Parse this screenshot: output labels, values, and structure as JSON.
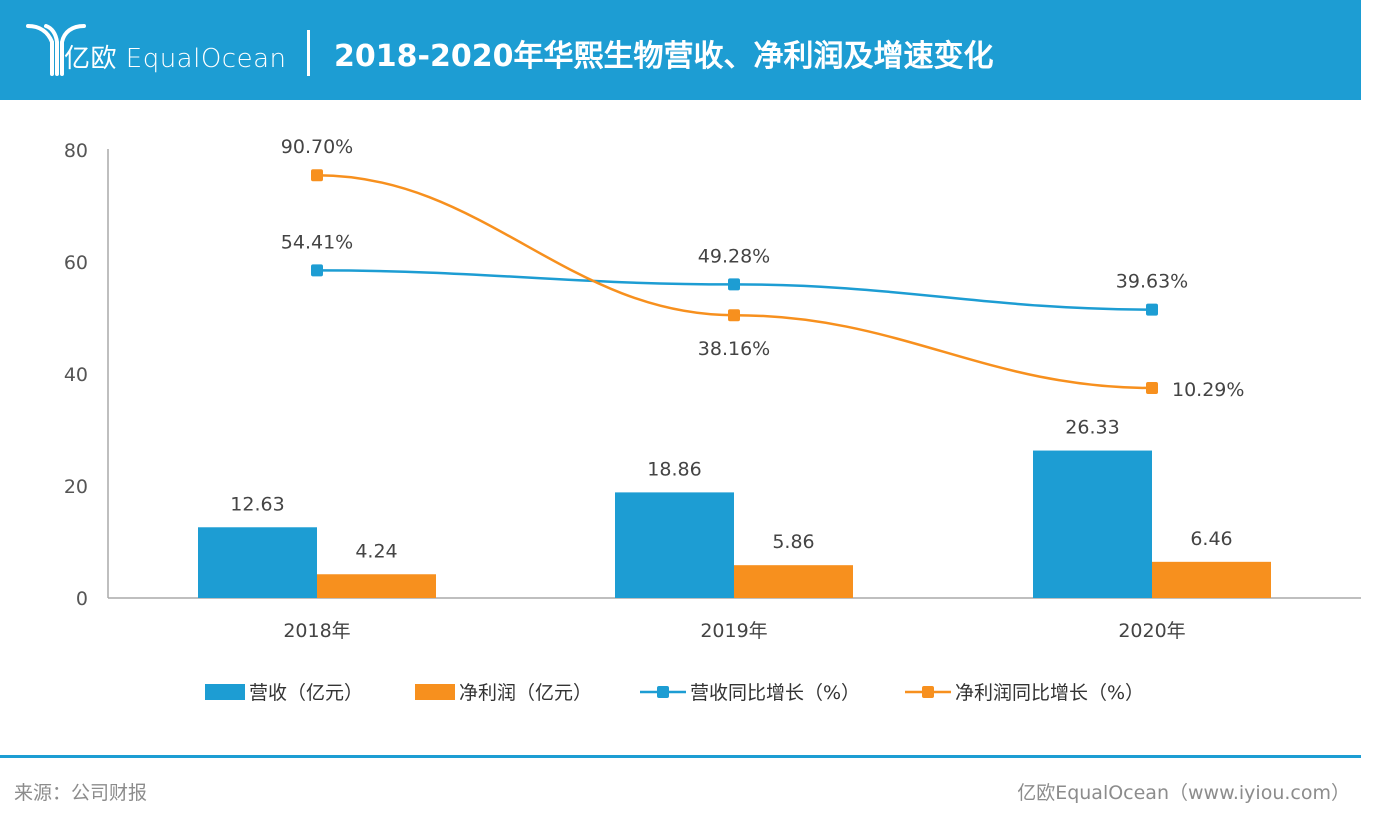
{
  "header": {
    "brand": "亿欧 EqualOcean",
    "title": "2018-2020年华熙生物营收、净利润及增速变化",
    "bg_color": "#1d9dd3"
  },
  "chart_data": {
    "type": "bar+line",
    "title": "2018-2020年华熙生物营收、净利润及增速变化",
    "categories": [
      "2018年",
      "2019年",
      "2020年"
    ],
    "ylim": [
      0,
      80
    ],
    "yticks": [
      0,
      20,
      40,
      60,
      80
    ],
    "grid": false,
    "legend_position": "bottom",
    "bar_series": [
      {
        "name": "营收（亿元）",
        "color": "#1d9dd3",
        "values": [
          12.63,
          18.86,
          26.33
        ],
        "labels": [
          "12.63",
          "18.86",
          "26.33"
        ]
      },
      {
        "name": "净利润（亿元）",
        "color": "#f7901e",
        "values": [
          4.24,
          5.86,
          6.46
        ],
        "labels": [
          "4.24",
          "5.86",
          "6.46"
        ]
      }
    ],
    "line_series": [
      {
        "name": "营收同比增长（%）",
        "color": "#1d9dd3",
        "values": [
          58.5,
          56.0,
          51.5
        ],
        "labels": [
          "54.41%",
          "49.28%",
          "39.63%"
        ],
        "label_side": [
          "above",
          "above",
          "above"
        ]
      },
      {
        "name": "净利润同比增长（%）",
        "color": "#f7901e",
        "values": [
          75.5,
          50.5,
          37.5
        ],
        "labels": [
          "90.70%",
          "38.16%",
          "10.29%"
        ],
        "label_side": [
          "above",
          "below",
          "right"
        ]
      }
    ]
  },
  "footer": {
    "source": "来源：公司财报",
    "credit": "亿欧EqualOcean（www.iyiou.com）"
  }
}
